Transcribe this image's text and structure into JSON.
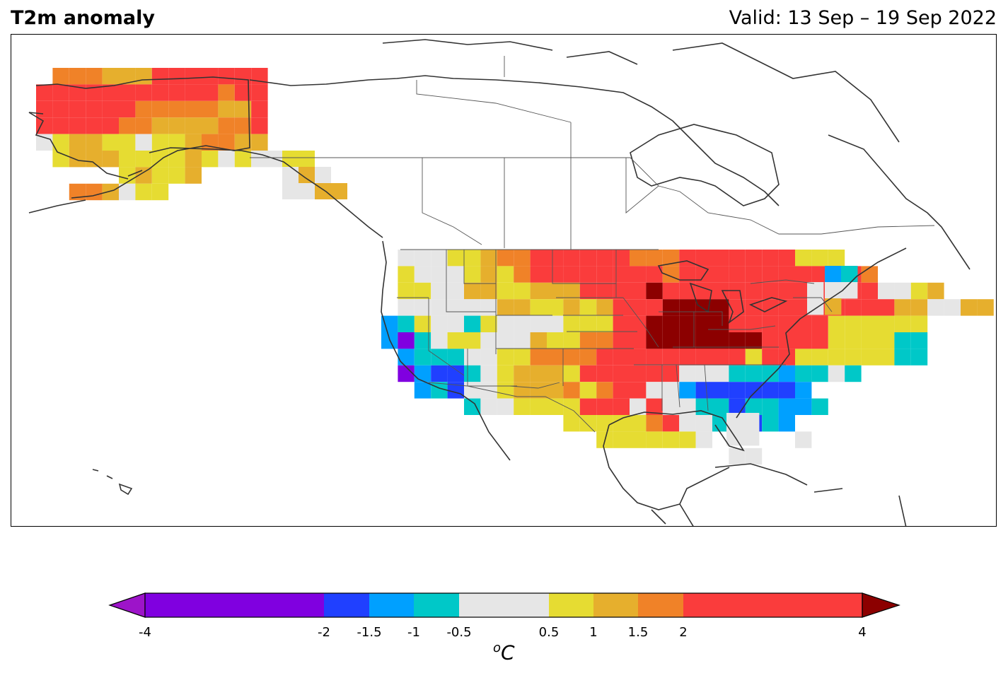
{
  "title": "T2m anomaly",
  "valid_label": "Valid: 13 Sep – 19 Sep 2022",
  "colorbar": {
    "units_base": "C",
    "units_sup": "o",
    "ticks": [
      "-4",
      "-2",
      "-1.5",
      "-1",
      "-0.5",
      "0.5",
      "1",
      "1.5",
      "2",
      "4"
    ],
    "bins": [
      {
        "range": "< -4",
        "color": "#9d14c9"
      },
      {
        "range": "-4 to -2",
        "color": "#8000e0"
      },
      {
        "range": "-2 to -1.5",
        "color": "#2040ff"
      },
      {
        "range": "-1.5 to -1",
        "color": "#00a0ff"
      },
      {
        "range": "-1 to -0.5",
        "color": "#00c8c8"
      },
      {
        "range": "-0.5 to 0.5",
        "color": "#e6e6e6"
      },
      {
        "range": "0.5 to 1",
        "color": "#e6dc32"
      },
      {
        "range": "1 to 1.5",
        "color": "#e6af2d"
      },
      {
        "range": "1.5 to 2",
        "color": "#f08228"
      },
      {
        "range": "2 to 4",
        "color": "#fa3c3c"
      },
      {
        "range": "> 4",
        "color": "#8c0000"
      }
    ]
  },
  "anomaly_regions": [
    {
      "region": "Alaska interior and north",
      "anomaly_class": "2 to 4"
    },
    {
      "region": "Southwest Alaska",
      "anomaly_class": "0.5 to 1"
    },
    {
      "region": "Alaska panhandle",
      "anomaly_class": "1 to 1.5"
    },
    {
      "region": "US Northern Plains and Upper Midwest",
      "anomaly_class": "2 to 4"
    },
    {
      "region": "Nebraska / Kansas core",
      "anomaly_class": "> 4"
    },
    {
      "region": "California coast",
      "anomaly_class": "-4 to -2"
    },
    {
      "region": "Southwest US",
      "anomaly_class": "-2 to -1.5"
    },
    {
      "region": "Southeast US (Alabama/Georgia)",
      "anomaly_class": "-2 to -1.5"
    },
    {
      "region": "Texas",
      "anomaly_class": "0.5 to 1"
    },
    {
      "region": "Florida",
      "anomaly_class": "-0.5 to 0.5"
    },
    {
      "region": "New England",
      "anomaly_class": "-1.5 to -1"
    }
  ]
}
